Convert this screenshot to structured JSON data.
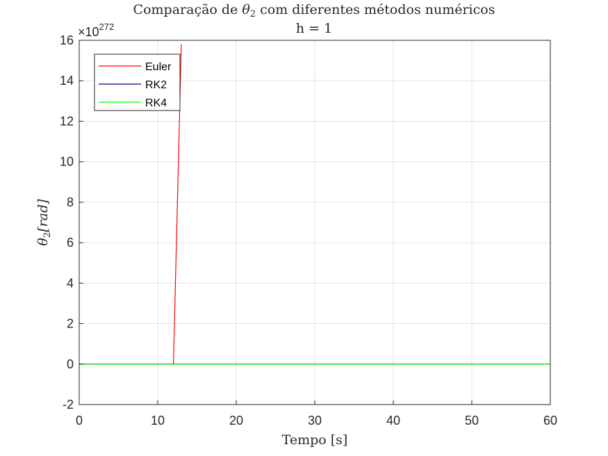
{
  "chart_data": {
    "type": "line",
    "title_prefix": "Comparação de ",
    "title_symbol": "θ",
    "title_subscript": "2",
    "title_suffix": " com diferentes métodos numéricos",
    "subtitle": "h = 1",
    "xlabel": "Tempo [s]",
    "ylabel_symbol": "θ",
    "ylabel_subscript": "2",
    "ylabel_unit": "[rad]",
    "xlim": [
      0,
      60
    ],
    "ylim": [
      -2,
      16
    ],
    "y_multiplier_base": "×10",
    "y_multiplier_exponent": "272",
    "x_ticks": [
      "0",
      "10",
      "20",
      "30",
      "40",
      "50",
      "60"
    ],
    "y_ticks": [
      "-2",
      "0",
      "2",
      "4",
      "6",
      "8",
      "10",
      "12",
      "14",
      "16"
    ],
    "grid": true,
    "legend_position": "top-left",
    "series": [
      {
        "name": "Euler",
        "color": "#ff0000",
        "x": [
          0,
          12,
          13
        ],
        "y": [
          0,
          0,
          15.8
        ]
      },
      {
        "name": "RK2",
        "color": "#00007f",
        "x": [
          0,
          60
        ],
        "y": [
          0,
          0
        ]
      },
      {
        "name": "RK4",
        "color": "#00ff00",
        "x": [
          0,
          60
        ],
        "y": [
          0,
          0
        ]
      }
    ]
  }
}
